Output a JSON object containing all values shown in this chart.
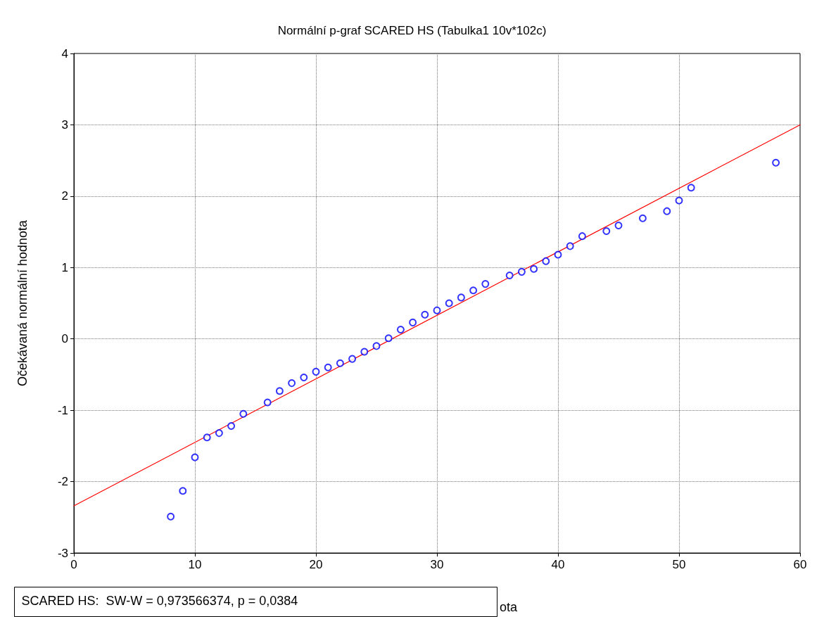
{
  "chart_data": {
    "type": "scatter",
    "title": "Normální p-graf SCARED HS (Tabulka1 10v*102c)",
    "xlabel": "ota",
    "ylabel": "Očekávaná normální hodnota",
    "annotations": [
      "SCARED HS:  SW-W = 0,973566374, p = 0,0384"
    ],
    "xlim": [
      0,
      60
    ],
    "xticks": [
      0,
      10,
      20,
      30,
      40,
      50,
      60
    ],
    "ylim": [
      -3,
      4
    ],
    "yticks": [
      -3,
      -2,
      -1,
      0,
      1,
      2,
      3,
      4
    ],
    "grid": true,
    "series": [
      {
        "type": "scatter",
        "color": "#0000ff",
        "marker": "circle",
        "x": [
          8,
          9,
          10,
          11,
          12,
          13,
          14,
          16,
          17,
          18,
          19,
          20,
          21,
          22,
          23,
          24,
          25,
          26,
          27,
          28,
          29,
          30,
          31,
          32,
          33,
          34,
          36,
          37,
          38,
          39,
          40,
          41,
          42,
          44,
          45,
          47,
          49,
          50,
          51,
          58
        ],
        "values": [
          -2.49,
          -2.13,
          -1.66,
          -1.38,
          -1.32,
          -1.22,
          -1.05,
          -0.89,
          -0.73,
          -0.62,
          -0.54,
          -0.46,
          -0.4,
          -0.34,
          -0.28,
          -0.18,
          -0.1,
          0.01,
          0.13,
          0.23,
          0.34,
          0.4,
          0.5,
          0.58,
          0.68,
          0.77,
          0.89,
          0.94,
          0.98,
          1.09,
          1.18,
          1.3,
          1.44,
          1.51,
          1.59,
          1.69,
          1.79,
          1.94,
          2.12,
          2.47
        ]
      },
      {
        "type": "line",
        "color": "#ff0000",
        "marker": "none",
        "line_style": "solid",
        "x": [
          0,
          60
        ],
        "values": [
          -2.34,
          3.0
        ]
      }
    ]
  }
}
